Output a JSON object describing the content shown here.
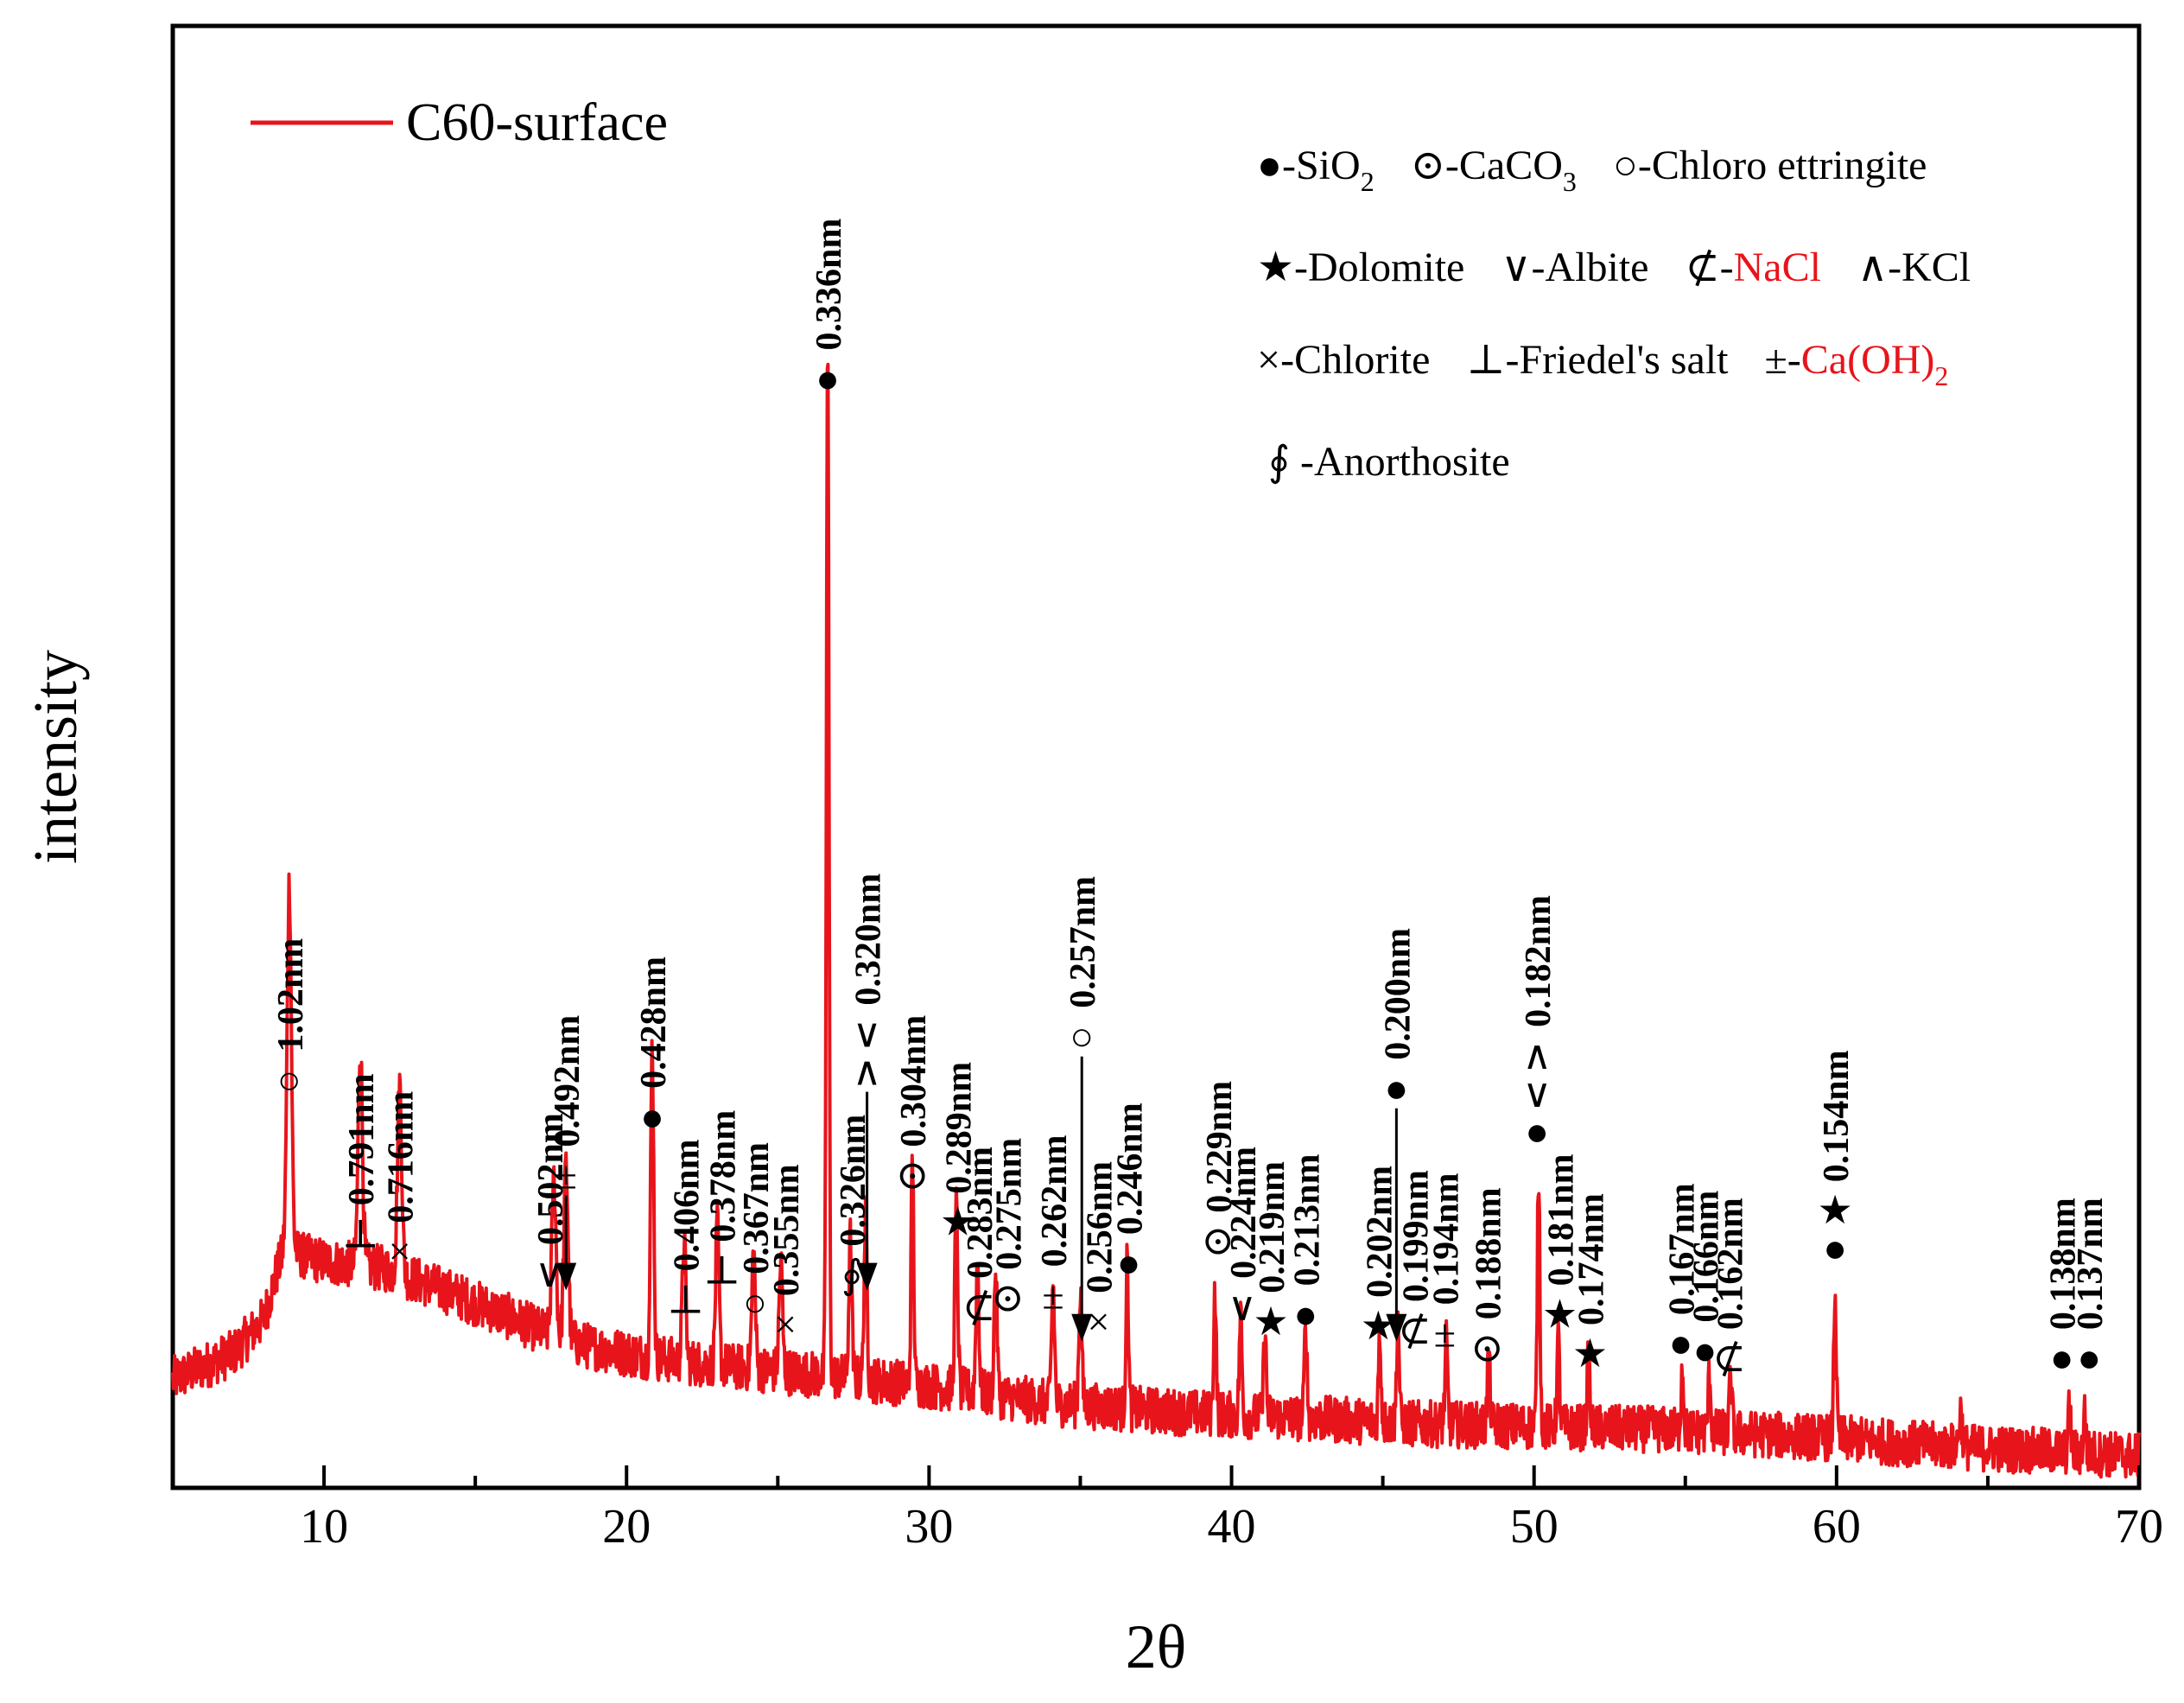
{
  "colors": {
    "line": "#e8141b",
    "axis": "#000000",
    "highlight": "#e8141b"
  },
  "chart_data": {
    "type": "line",
    "title": "",
    "xlabel": "2θ",
    "ylabel": "intensity",
    "xlim": [
      5,
      70
    ],
    "ylim": [
      0,
      1000
    ],
    "xticks": [
      10,
      20,
      30,
      40,
      50,
      60,
      70
    ],
    "xtick_labels": [
      "10",
      "20",
      "30",
      "40",
      "50",
      "60",
      "70"
    ],
    "yticks_shown": false,
    "legend": {
      "position": "top-left",
      "entries": [
        "C60-surface"
      ]
    },
    "series": [
      {
        "name": "C60-surface",
        "baseline": [
          [
            5,
            74
          ],
          [
            7,
            92
          ],
          [
            8,
            115
          ],
          [
            8.4,
            145
          ],
          [
            8.7,
            165
          ],
          [
            9.4,
            158
          ],
          [
            10,
            155
          ],
          [
            12,
            150
          ],
          [
            14,
            135
          ],
          [
            16,
            118
          ],
          [
            18,
            100
          ],
          [
            20,
            92
          ],
          [
            22,
            86
          ],
          [
            24,
            82
          ],
          [
            26,
            78
          ],
          [
            28,
            74
          ],
          [
            30,
            70
          ],
          [
            32,
            64
          ],
          [
            34,
            58
          ],
          [
            36,
            55
          ],
          [
            38,
            52
          ],
          [
            40,
            50
          ],
          [
            42,
            48
          ],
          [
            44,
            46
          ],
          [
            46,
            44
          ],
          [
            48,
            43
          ],
          [
            50,
            42
          ],
          [
            52,
            41
          ],
          [
            54,
            40
          ],
          [
            56,
            38
          ],
          [
            58,
            36
          ],
          [
            60,
            34
          ],
          [
            62,
            31
          ],
          [
            64,
            28
          ],
          [
            66,
            26
          ],
          [
            68,
            24
          ],
          [
            70,
            22
          ]
        ],
        "peaks": [
          {
            "x": 8.85,
            "y": 250,
            "w": 0.1
          },
          {
            "x": 11.2,
            "y": 150,
            "w": 0.1
          },
          {
            "x": 12.5,
            "y": 130,
            "w": 0.1
          },
          {
            "x": 17.6,
            "y": 108,
            "w": 0.1
          },
          {
            "x": 18.0,
            "y": 120,
            "w": 0.1
          },
          {
            "x": 20.85,
            "y": 215,
            "w": 0.07
          },
          {
            "x": 21.9,
            "y": 85,
            "w": 0.08
          },
          {
            "x": 23.0,
            "y": 95,
            "w": 0.08
          },
          {
            "x": 24.2,
            "y": 80,
            "w": 0.08
          },
          {
            "x": 25.1,
            "y": 75,
            "w": 0.08
          },
          {
            "x": 26.65,
            "y": 710,
            "w": 0.06
          },
          {
            "x": 27.4,
            "y": 95,
            "w": 0.07
          },
          {
            "x": 27.9,
            "y": 110,
            "w": 0.07
          },
          {
            "x": 29.45,
            "y": 155,
            "w": 0.06
          },
          {
            "x": 30.9,
            "y": 125,
            "w": 0.07
          },
          {
            "x": 31.6,
            "y": 90,
            "w": 0.07
          },
          {
            "x": 32.2,
            "y": 85,
            "w": 0.07
          },
          {
            "x": 34.1,
            "y": 82,
            "w": 0.07
          },
          {
            "x": 35.0,
            "y": 78,
            "w": 0.07
          },
          {
            "x": 36.55,
            "y": 100,
            "w": 0.06
          },
          {
            "x": 39.45,
            "y": 85,
            "w": 0.06
          },
          {
            "x": 40.3,
            "y": 70,
            "w": 0.06
          },
          {
            "x": 41.1,
            "y": 60,
            "w": 0.06
          },
          {
            "x": 42.45,
            "y": 65,
            "w": 0.06
          },
          {
            "x": 44.9,
            "y": 58,
            "w": 0.06
          },
          {
            "x": 45.5,
            "y": 72,
            "w": 0.06
          },
          {
            "x": 47.1,
            "y": 55,
            "w": 0.06
          },
          {
            "x": 48.5,
            "y": 50,
            "w": 0.06
          },
          {
            "x": 50.15,
            "y": 175,
            "w": 0.06
          },
          {
            "x": 50.8,
            "y": 60,
            "w": 0.06
          },
          {
            "x": 51.8,
            "y": 48,
            "w": 0.06
          },
          {
            "x": 54.9,
            "y": 45,
            "w": 0.06
          },
          {
            "x": 55.8,
            "y": 40,
            "w": 0.06
          },
          {
            "x": 56.5,
            "y": 38,
            "w": 0.06
          },
          {
            "x": 59.95,
            "y": 100,
            "w": 0.06
          },
          {
            "x": 64.1,
            "y": 25,
            "w": 0.07
          },
          {
            "x": 67.7,
            "y": 30,
            "w": 0.06
          },
          {
            "x": 68.2,
            "y": 28,
            "w": 0.06
          }
        ],
        "noise_amplitude": 16
      }
    ],
    "phase_key": [
      {
        "symbol": "●",
        "name": "SiO",
        "sub": "2"
      },
      {
        "symbol": "⊙",
        "name": "CaCO",
        "sub": "3"
      },
      {
        "symbol": "○",
        "name": "Chloro ettringite"
      },
      {
        "symbol": "★",
        "name": "Dolomite"
      },
      {
        "symbol": "∨",
        "name": "Albite"
      },
      {
        "symbol": "⊄",
        "name": "NaCl",
        "highlight": true
      },
      {
        "symbol": "∧",
        "name": "KCl"
      },
      {
        "symbol": "×",
        "name": "Chlorite"
      },
      {
        "symbol": "⊥",
        "name": "Friedel's salt"
      },
      {
        "symbol": "±",
        "name": "Ca(OH)",
        "sub": "2",
        "highlight": true
      },
      {
        "symbol": "∮",
        "name": "Anorthosite"
      }
    ],
    "annotations": [
      {
        "x": 8.85,
        "y": 265,
        "symbol": "○",
        "label": "1.02nm"
      },
      {
        "x": 11.2,
        "y": 160,
        "symbol": "⊥",
        "label": "0.791nm"
      },
      {
        "x": 12.5,
        "y": 148,
        "symbol": "×",
        "label": "0.716nm"
      },
      {
        "x": 17.45,
        "y": 133,
        "symbol": "∨",
        "label": "0.502nm"
      },
      {
        "x": 18.0,
        "y": 135,
        "symbol": "±",
        "label": "0.492nm",
        "arrow": true,
        "arrow_len": 110
      },
      {
        "x": 20.85,
        "y": 240,
        "symbol": "●",
        "label": "0.428nm"
      },
      {
        "x": 21.95,
        "y": 115,
        "symbol": "⊥",
        "label": "0.406nm"
      },
      {
        "x": 23.15,
        "y": 135,
        "symbol": "⊥",
        "label": "0.378nm"
      },
      {
        "x": 24.25,
        "y": 113,
        "symbol": "○",
        "label": "0.367nm"
      },
      {
        "x": 25.25,
        "y": 98,
        "symbol": "×",
        "label": "0.355nm"
      },
      {
        "x": 26.65,
        "y": 745,
        "symbol": "●",
        "label": "0.336nm"
      },
      {
        "x": 27.45,
        "y": 132,
        "symbol": "∮",
        "label": "0.326nm"
      },
      {
        "x": 27.95,
        "y": 135,
        "symbol": "∧∨",
        "label": "0.320nm",
        "arrow": true,
        "arrow_len": 230
      },
      {
        "x": 29.45,
        "y": 200,
        "symbol": "⊙",
        "label": "0.304nm"
      },
      {
        "x": 30.95,
        "y": 168,
        "symbol": "★",
        "label": "0.289nm"
      },
      {
        "x": 31.65,
        "y": 110,
        "symbol": "⊄",
        "label": "0.283nm"
      },
      {
        "x": 32.6,
        "y": 116,
        "symbol": "⊙",
        "label": "0.275nm"
      },
      {
        "x": 34.1,
        "y": 118,
        "symbol": "±",
        "label": "0.262nm"
      },
      {
        "x": 35.05,
        "y": 100,
        "symbol": "○",
        "label": "0.257nm",
        "arrow": true,
        "arrow_len": 330
      },
      {
        "x": 35.6,
        "y": 100,
        "symbol": "×",
        "label": "0.256nm"
      },
      {
        "x": 36.6,
        "y": 140,
        "symbol": "●",
        "label": "0.246nm"
      },
      {
        "x": 39.55,
        "y": 155,
        "symbol": "⊙",
        "label": "0.229nm"
      },
      {
        "x": 40.35,
        "y": 110,
        "symbol": "∨",
        "label": "0.224nm"
      },
      {
        "x": 41.3,
        "y": 100,
        "symbol": "★",
        "label": "0.219nm"
      },
      {
        "x": 42.45,
        "y": 105,
        "symbol": "●",
        "label": "0.213nm"
      },
      {
        "x": 44.85,
        "y": 97,
        "symbol": "★",
        "label": "0.202nm"
      },
      {
        "x": 45.45,
        "y": 100,
        "symbol": "●",
        "label": "0.200nm",
        "arrow": true,
        "arrow_len": 270
      },
      {
        "x": 46.05,
        "y": 94,
        "symbol": "⊄",
        "label": "0.199nm"
      },
      {
        "x": 47.05,
        "y": 92,
        "symbol": "±",
        "label": "0.194nm"
      },
      {
        "x": 48.45,
        "y": 82,
        "symbol": "⊙",
        "label": "0.188nm"
      },
      {
        "x": 50.1,
        "y": 230,
        "symbol": "●∨∧",
        "label": "0.182nm"
      },
      {
        "x": 50.85,
        "y": 105,
        "symbol": "★",
        "label": "0.181nm"
      },
      {
        "x": 51.85,
        "y": 78,
        "symbol": "★",
        "label": "0.174nm"
      },
      {
        "x": 54.85,
        "y": 85,
        "symbol": "●",
        "label": "0.167nm"
      },
      {
        "x": 55.65,
        "y": 80,
        "symbol": "●",
        "label": "0.166nm"
      },
      {
        "x": 56.45,
        "y": 75,
        "symbol": "⊄",
        "label": "0.162nm"
      },
      {
        "x": 59.95,
        "y": 150,
        "symbol": "●★",
        "label": "0.154nm"
      },
      {
        "x": 67.45,
        "y": 75,
        "symbol": "●",
        "label": "0.138nm"
      },
      {
        "x": 68.35,
        "y": 75,
        "symbol": "●",
        "label": "0.137nm"
      }
    ]
  }
}
